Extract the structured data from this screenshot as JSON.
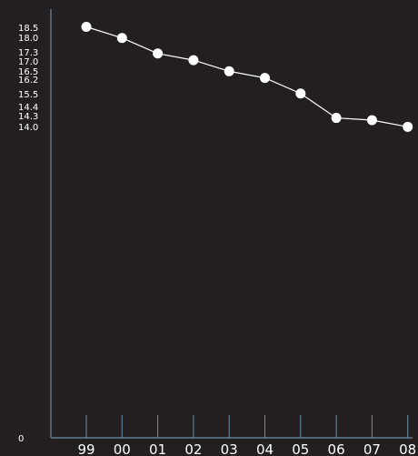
{
  "colors": {
    "background": "#231f20",
    "axis": "#6f8fa8",
    "series": "#ffffff"
  },
  "chart_data": {
    "type": "line",
    "title": "",
    "xlabel": "",
    "ylabel": "",
    "grid": false,
    "x": [
      "99",
      "00",
      "01",
      "02",
      "03",
      "04",
      "05",
      "06",
      "07",
      "08"
    ],
    "series": [
      {
        "values": [
          18.5,
          18.0,
          17.3,
          17.0,
          16.5,
          16.2,
          15.5,
          14.4,
          14.3,
          14.0
        ]
      }
    ],
    "y_tick_labels": [
      "18.5",
      "18.0",
      "17.3",
      "17.0",
      "16.5",
      "16.2",
      "15.5",
      "14.4",
      "14.3",
      "14.0",
      "0"
    ],
    "ylim": [
      0,
      18.5
    ]
  }
}
